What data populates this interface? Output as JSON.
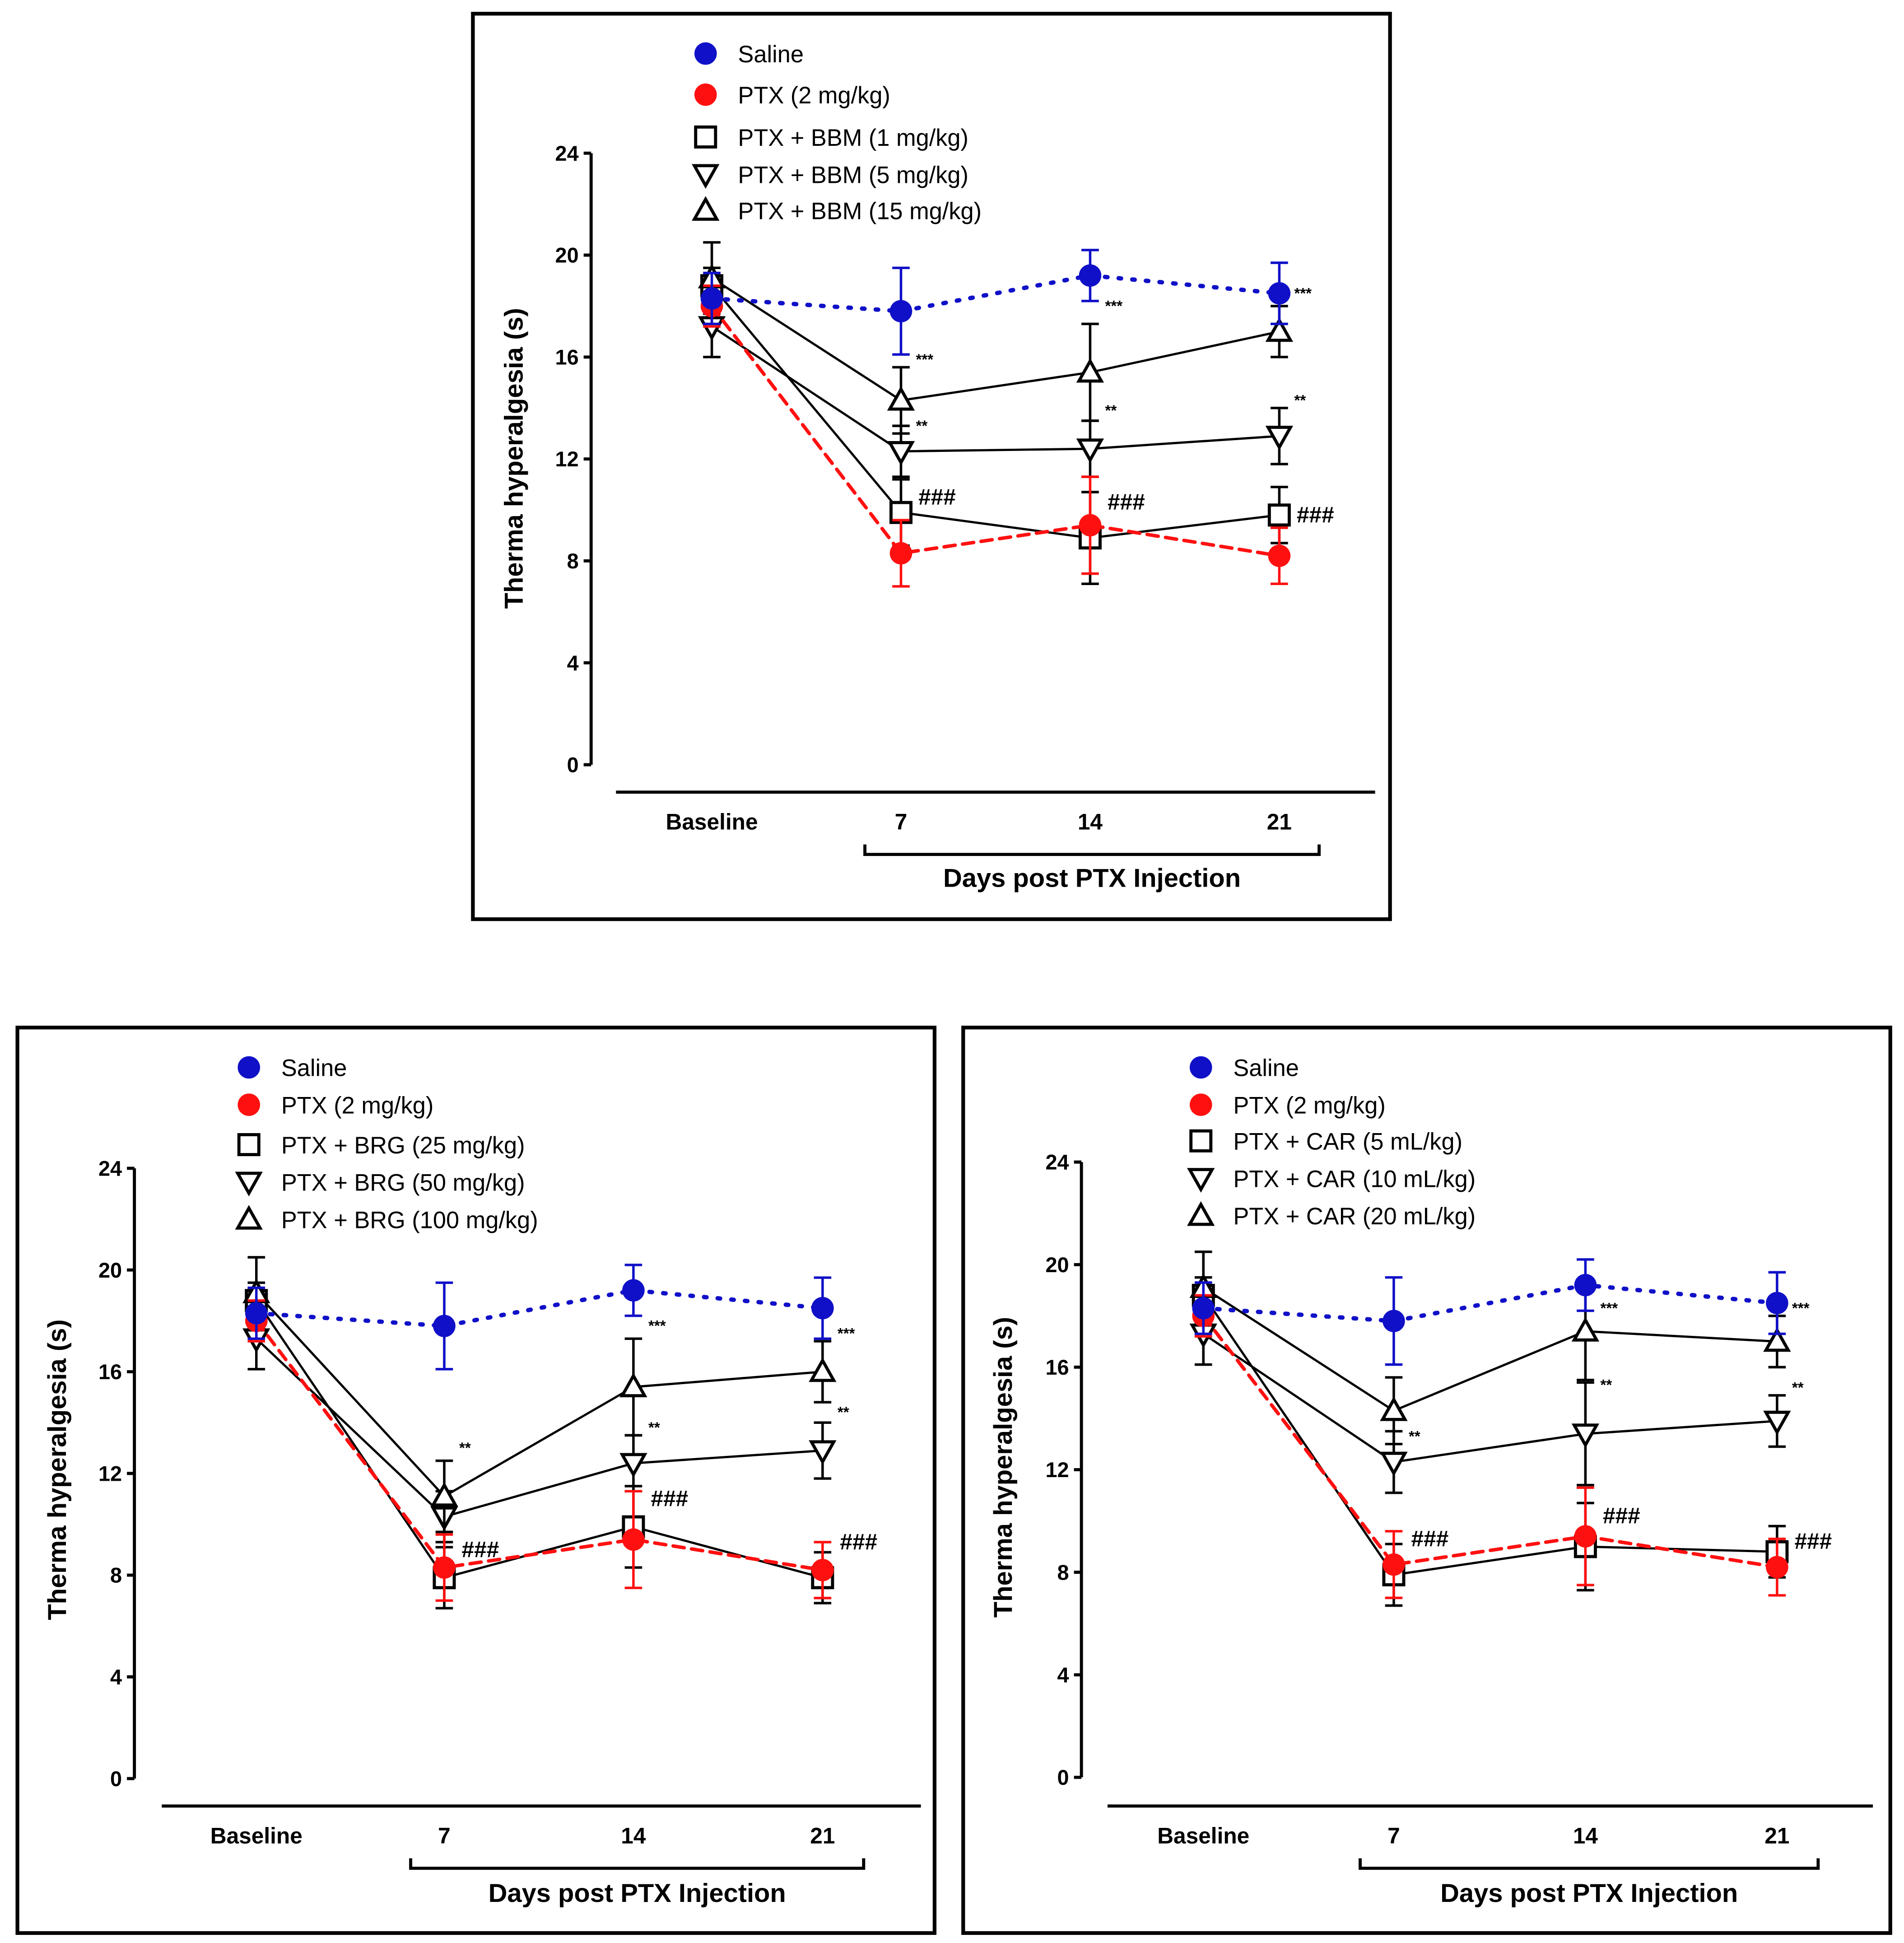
{
  "colors": {
    "saline": "#1010c8",
    "ptx": "#ff1010",
    "treatment": "#000000"
  },
  "chart_data": [
    {
      "type": "line",
      "ylabel": "Therma hyperalgesia (s)",
      "xlabel": "Days post PTX Injection",
      "categories": [
        "Baseline",
        "7",
        "14",
        "21"
      ],
      "yticks": [
        "0",
        "4",
        "8",
        "12",
        "16",
        "20",
        "24"
      ],
      "ylim": [
        0,
        24
      ],
      "legend_position": "top-left",
      "series": [
        {
          "name": "Saline",
          "marker": "circle",
          "style": "dotted",
          "color": "#1010c8",
          "values": [
            18.3,
            17.8,
            19.2,
            18.5
          ],
          "errors": [
            1.0,
            1.7,
            1.0,
            1.2
          ]
        },
        {
          "name": "PTX (2 mg/kg)",
          "marker": "circle",
          "style": "dashed",
          "color": "#ff1010",
          "values": [
            18.0,
            8.3,
            9.4,
            8.2
          ],
          "errors": [
            0.8,
            1.3,
            1.9,
            1.1
          ]
        },
        {
          "name": "PTX + BBM (1 mg/kg)",
          "marker": "square",
          "style": "solid",
          "color": "#000000",
          "values": [
            18.8,
            9.9,
            8.9,
            9.8
          ],
          "errors": [
            0.7,
            1.3,
            1.8,
            1.1
          ]
        },
        {
          "name": "PTX + BBM (5 mg/kg)",
          "marker": "triangle-down",
          "style": "solid",
          "color": "#000000",
          "values": [
            17.2,
            12.3,
            12.4,
            12.9
          ],
          "errors": [
            1.2,
            1.0,
            1.1,
            1.1
          ]
        },
        {
          "name": "PTX + BBM (15 mg/kg)",
          "marker": "triangle-up",
          "style": "solid",
          "color": "#000000",
          "values": [
            19.1,
            14.3,
            15.4,
            17.0
          ],
          "errors": [
            1.4,
            1.3,
            1.9,
            1.0
          ]
        }
      ],
      "annotations": [
        {
          "x": 1,
          "y": 15.9,
          "text": "***"
        },
        {
          "x": 1,
          "y": 13.3,
          "text": "**"
        },
        {
          "x": 1,
          "y": 10.5,
          "text": "###"
        },
        {
          "x": 2,
          "y": 18.0,
          "text": "***"
        },
        {
          "x": 2,
          "y": 13.9,
          "text": "**"
        },
        {
          "x": 2,
          "y": 10.3,
          "text": "###"
        },
        {
          "x": 3,
          "y": 18.5,
          "text": "***"
        },
        {
          "x": 3,
          "y": 14.3,
          "text": "**"
        },
        {
          "x": 3,
          "y": 9.8,
          "text": "###"
        }
      ]
    },
    {
      "type": "line",
      "ylabel": "Therma hyperalgesia (s)",
      "xlabel": "Days post PTX Injection",
      "categories": [
        "Baseline",
        "7",
        "14",
        "21"
      ],
      "yticks": [
        "0",
        "4",
        "8",
        "12",
        "16",
        "20",
        "24"
      ],
      "ylim": [
        0,
        24
      ],
      "legend_position": "top-left",
      "series": [
        {
          "name": "Saline",
          "marker": "circle",
          "style": "dotted",
          "color": "#1010c8",
          "values": [
            18.3,
            17.8,
            19.2,
            18.5
          ],
          "errors": [
            1.0,
            1.7,
            1.0,
            1.2
          ]
        },
        {
          "name": "PTX (2 mg/kg)",
          "marker": "circle",
          "style": "dashed",
          "color": "#ff1010",
          "values": [
            18.0,
            8.3,
            9.4,
            8.2
          ],
          "errors": [
            0.8,
            1.3,
            1.9,
            1.1
          ]
        },
        {
          "name": "PTX + BRG (25 mg/kg)",
          "marker": "square",
          "style": "solid",
          "color": "#000000",
          "values": [
            18.8,
            7.9,
            9.9,
            7.9
          ],
          "errors": [
            0.7,
            1.2,
            1.6,
            1.0
          ]
        },
        {
          "name": "PTX + BRG (50 mg/kg)",
          "marker": "triangle-down",
          "style": "solid",
          "color": "#000000",
          "values": [
            17.3,
            10.3,
            12.4,
            12.9
          ],
          "errors": [
            1.2,
            1.0,
            1.1,
            1.1
          ]
        },
        {
          "name": "PTX + BRG (100 mg/kg)",
          "marker": "triangle-up",
          "style": "solid",
          "color": "#000000",
          "values": [
            19.1,
            11.1,
            15.4,
            16.0
          ],
          "errors": [
            1.4,
            1.4,
            1.9,
            1.2
          ]
        }
      ],
      "annotations": [
        {
          "x": 1,
          "y": 13.0,
          "text": "**"
        },
        {
          "x": 1,
          "y": 9.0,
          "text": "###"
        },
        {
          "x": 2,
          "y": 17.8,
          "text": "***"
        },
        {
          "x": 2,
          "y": 13.8,
          "text": "**"
        },
        {
          "x": 2,
          "y": 11.0,
          "text": "###"
        },
        {
          "x": 3,
          "y": 17.5,
          "text": "***"
        },
        {
          "x": 3,
          "y": 14.4,
          "text": "**"
        },
        {
          "x": 3,
          "y": 9.3,
          "text": "###"
        }
      ]
    },
    {
      "type": "line",
      "ylabel": "Therma hyperalgesia (s)",
      "xlabel": "Days post PTX Injection",
      "categories": [
        "Baseline",
        "7",
        "14",
        "21"
      ],
      "yticks": [
        "0",
        "4",
        "8",
        "12",
        "16",
        "20",
        "24"
      ],
      "ylim": [
        0,
        24
      ],
      "legend_position": "top-left",
      "series": [
        {
          "name": "Saline",
          "marker": "circle",
          "style": "dotted",
          "color": "#1010c8",
          "values": [
            18.3,
            17.8,
            19.2,
            18.5
          ],
          "errors": [
            1.0,
            1.7,
            1.0,
            1.2
          ]
        },
        {
          "name": "PTX (2 mg/kg)",
          "marker": "circle",
          "style": "dashed",
          "color": "#ff1010",
          "values": [
            18.0,
            8.3,
            9.4,
            8.2
          ],
          "errors": [
            0.8,
            1.3,
            1.9,
            1.1
          ]
        },
        {
          "name": "PTX + CAR (5 mL/kg)",
          "marker": "square",
          "style": "solid",
          "color": "#000000",
          "values": [
            18.8,
            7.9,
            9.0,
            8.8
          ],
          "errors": [
            0.7,
            1.2,
            1.7,
            1.0
          ]
        },
        {
          "name": "PTX + CAR (10 mL/kg)",
          "marker": "triangle-down",
          "style": "solid",
          "color": "#000000",
          "values": [
            17.3,
            12.3,
            13.4,
            13.9
          ],
          "errors": [
            1.2,
            1.2,
            2.0,
            1.0
          ]
        },
        {
          "name": "PTX + CAR (20 mL/kg)",
          "marker": "triangle-up",
          "style": "solid",
          "color": "#000000",
          "values": [
            19.1,
            14.3,
            17.4,
            17.0
          ],
          "errors": [
            1.4,
            1.3,
            1.9,
            1.0
          ]
        }
      ],
      "annotations": [
        {
          "x": 1,
          "y": 13.3,
          "text": "**"
        },
        {
          "x": 1,
          "y": 9.3,
          "text": "###"
        },
        {
          "x": 2,
          "y": 18.3,
          "text": "***"
        },
        {
          "x": 2,
          "y": 15.3,
          "text": "**"
        },
        {
          "x": 2,
          "y": 10.2,
          "text": "###"
        },
        {
          "x": 3,
          "y": 18.3,
          "text": "***"
        },
        {
          "x": 3,
          "y": 15.2,
          "text": "**"
        },
        {
          "x": 3,
          "y": 9.2,
          "text": "###"
        }
      ]
    }
  ]
}
